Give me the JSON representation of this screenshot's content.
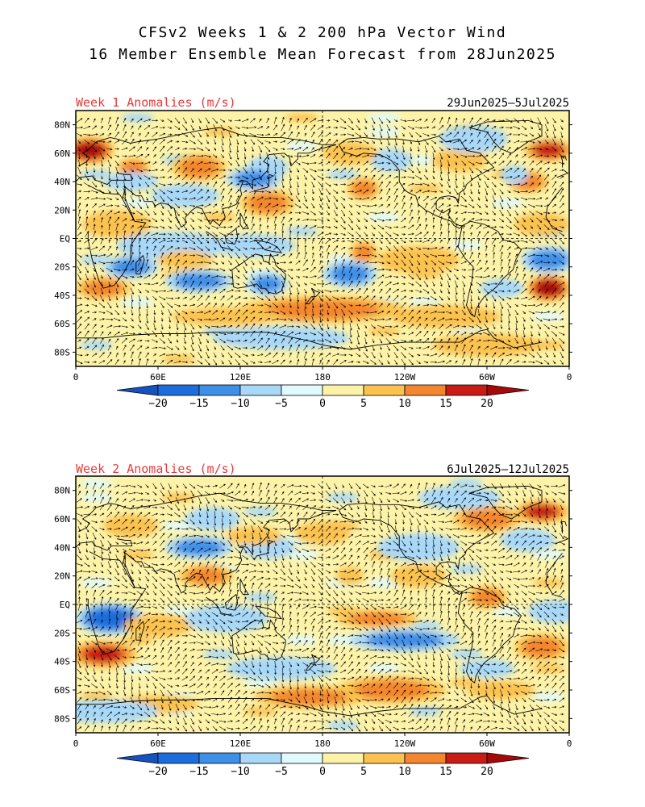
{
  "title": {
    "line1": "CFSv2 Weeks 1 & 2 200 hPa Vector Wind",
    "line2": "16 Member Ensemble Mean Forecast from 28Jun2025"
  },
  "panels": [
    {
      "label": "Week 1 Anomalies (m/s)",
      "date_range": "29Jun2025–5Jul2025",
      "anomaly_blobs": [
        {
          "lon": 10,
          "lat": 62,
          "rx": 18,
          "ry": 6,
          "v": 20
        },
        {
          "lon": 42,
          "lat": 50,
          "rx": 12,
          "ry": 4,
          "v": 11
        },
        {
          "lon": 90,
          "lat": 50,
          "rx": 20,
          "ry": 6,
          "v": 12
        },
        {
          "lon": 140,
          "lat": 50,
          "rx": 15,
          "ry": 5,
          "v": -8
        },
        {
          "lon": 130,
          "lat": 42,
          "rx": 20,
          "ry": 5,
          "v": -12
        },
        {
          "lon": 140,
          "lat": 25,
          "rx": 20,
          "ry": 6,
          "v": 10
        },
        {
          "lon": 80,
          "lat": 30,
          "rx": 25,
          "ry": 5,
          "v": -6
        },
        {
          "lon": 40,
          "lat": 40,
          "rx": 20,
          "ry": 4,
          "v": -7
        },
        {
          "lon": 210,
          "lat": 35,
          "rx": 12,
          "ry": 5,
          "v": 12
        },
        {
          "lon": 230,
          "lat": 55,
          "rx": 15,
          "ry": 5,
          "v": -5
        },
        {
          "lon": 200,
          "lat": 60,
          "rx": 20,
          "ry": 5,
          "v": 8
        },
        {
          "lon": 280,
          "lat": 55,
          "rx": 20,
          "ry": 5,
          "v": 8
        },
        {
          "lon": 290,
          "lat": 70,
          "rx": 25,
          "ry": 6,
          "v": -9
        },
        {
          "lon": 345,
          "lat": 62,
          "rx": 18,
          "ry": 5,
          "v": 15
        },
        {
          "lon": 330,
          "lat": 40,
          "rx": 15,
          "ry": 5,
          "v": 11
        },
        {
          "lon": 320,
          "lat": 45,
          "rx": 10,
          "ry": 4,
          "v": -6
        },
        {
          "lon": 340,
          "lat": 10,
          "rx": 20,
          "ry": 5,
          "v": 8
        },
        {
          "lon": 30,
          "lat": 10,
          "rx": 25,
          "ry": 6,
          "v": 6
        },
        {
          "lon": 70,
          "lat": -5,
          "rx": 40,
          "ry": 6,
          "v": -8
        },
        {
          "lon": 130,
          "lat": -5,
          "rx": 30,
          "ry": 5,
          "v": -6
        },
        {
          "lon": 210,
          "lat": -10,
          "rx": 10,
          "ry": 5,
          "v": 12
        },
        {
          "lon": 200,
          "lat": -25,
          "rx": 20,
          "ry": 6,
          "v": -11
        },
        {
          "lon": 250,
          "lat": -15,
          "rx": 30,
          "ry": 6,
          "v": 6
        },
        {
          "lon": 345,
          "lat": -15,
          "rx": 20,
          "ry": 6,
          "v": -13
        },
        {
          "lon": 345,
          "lat": -35,
          "rx": 16,
          "ry": 6,
          "v": 20
        },
        {
          "lon": 310,
          "lat": -35,
          "rx": 15,
          "ry": 4,
          "v": -6
        },
        {
          "lon": 40,
          "lat": -20,
          "rx": 20,
          "ry": 5,
          "v": -11
        },
        {
          "lon": 20,
          "lat": -35,
          "rx": 20,
          "ry": 5,
          "v": 13
        },
        {
          "lon": 90,
          "lat": -30,
          "rx": 25,
          "ry": 5,
          "v": -12
        },
        {
          "lon": 140,
          "lat": -32,
          "rx": 15,
          "ry": 5,
          "v": -10
        },
        {
          "lon": 80,
          "lat": -15,
          "rx": 20,
          "ry": 4,
          "v": 8
        },
        {
          "lon": 180,
          "lat": -50,
          "rx": 60,
          "ry": 6,
          "v": 14
        },
        {
          "lon": 110,
          "lat": -55,
          "rx": 40,
          "ry": 4,
          "v": 9
        },
        {
          "lon": 270,
          "lat": -55,
          "rx": 40,
          "ry": 5,
          "v": 8
        },
        {
          "lon": 150,
          "lat": -70,
          "rx": 50,
          "ry": 5,
          "v": -6
        },
        {
          "lon": 300,
          "lat": -75,
          "rx": 40,
          "ry": 5,
          "v": 6
        }
      ]
    },
    {
      "label": "Week 2 Anomalies (m/s)",
      "date_range": "6Jul2025–12Jul2025",
      "anomaly_blobs": [
        {
          "lon": 40,
          "lat": 55,
          "rx": 20,
          "ry": 5,
          "v": 8
        },
        {
          "lon": 100,
          "lat": 60,
          "rx": 20,
          "ry": 5,
          "v": -8
        },
        {
          "lon": 90,
          "lat": 40,
          "rx": 25,
          "ry": 5,
          "v": -10
        },
        {
          "lon": 140,
          "lat": 40,
          "rx": 20,
          "ry": 5,
          "v": -9
        },
        {
          "lon": 95,
          "lat": 20,
          "rx": 20,
          "ry": 5,
          "v": 12
        },
        {
          "lon": 130,
          "lat": 48,
          "rx": 20,
          "ry": 4,
          "v": 8
        },
        {
          "lon": 180,
          "lat": 50,
          "rx": 20,
          "ry": 5,
          "v": 7
        },
        {
          "lon": 250,
          "lat": 40,
          "rx": 30,
          "ry": 6,
          "v": -9
        },
        {
          "lon": 300,
          "lat": 60,
          "rx": 25,
          "ry": 6,
          "v": 13
        },
        {
          "lon": 340,
          "lat": 65,
          "rx": 20,
          "ry": 5,
          "v": 15
        },
        {
          "lon": 330,
          "lat": 45,
          "rx": 20,
          "ry": 5,
          "v": -7
        },
        {
          "lon": 280,
          "lat": 75,
          "rx": 30,
          "ry": 5,
          "v": -9
        },
        {
          "lon": 300,
          "lat": 5,
          "rx": 15,
          "ry": 5,
          "v": 14
        },
        {
          "lon": 250,
          "lat": 20,
          "rx": 20,
          "ry": 5,
          "v": 8
        },
        {
          "lon": 200,
          "lat": 20,
          "rx": 10,
          "ry": 4,
          "v": 9
        },
        {
          "lon": 25,
          "lat": -10,
          "rx": 25,
          "ry": 7,
          "v": -15
        },
        {
          "lon": 20,
          "lat": -35,
          "rx": 25,
          "ry": 6,
          "v": 18
        },
        {
          "lon": 60,
          "lat": -15,
          "rx": 25,
          "ry": 5,
          "v": 7
        },
        {
          "lon": 110,
          "lat": -10,
          "rx": 30,
          "ry": 6,
          "v": -8
        },
        {
          "lon": 220,
          "lat": -10,
          "rx": 30,
          "ry": 4,
          "v": 12
        },
        {
          "lon": 240,
          "lat": -25,
          "rx": 40,
          "ry": 5,
          "v": -12
        },
        {
          "lon": 340,
          "lat": -30,
          "rx": 20,
          "ry": 6,
          "v": 13
        },
        {
          "lon": 350,
          "lat": -5,
          "rx": 20,
          "ry": 5,
          "v": -8
        },
        {
          "lon": 230,
          "lat": -60,
          "rx": 40,
          "ry": 6,
          "v": 14
        },
        {
          "lon": 170,
          "lat": -65,
          "rx": 40,
          "ry": 5,
          "v": 10
        },
        {
          "lon": 60,
          "lat": -70,
          "rx": 30,
          "ry": 4,
          "v": 7
        },
        {
          "lon": 310,
          "lat": -60,
          "rx": 25,
          "ry": 4,
          "v": 7
        },
        {
          "lon": 150,
          "lat": -45,
          "rx": 40,
          "ry": 5,
          "v": -7
        },
        {
          "lon": 300,
          "lat": -45,
          "rx": 20,
          "ry": 4,
          "v": -6
        },
        {
          "lon": 20,
          "lat": -75,
          "rx": 40,
          "ry": 5,
          "v": -5
        }
      ]
    }
  ],
  "axes": {
    "lat_labels": [
      "80N",
      "60N",
      "40N",
      "20N",
      "EQ",
      "20S",
      "40S",
      "60S",
      "80S"
    ],
    "lat_values": [
      80,
      60,
      40,
      20,
      0,
      -20,
      -40,
      -60,
      -80
    ],
    "lon_labels": [
      "0",
      "60E",
      "120E",
      "180",
      "120W",
      "60W",
      "0"
    ],
    "lon_values": [
      0,
      60,
      120,
      180,
      240,
      300,
      360
    ],
    "lat_range": [
      -90,
      90
    ],
    "lon_range": [
      0,
      360
    ]
  },
  "colorbar": {
    "labels": [
      "−20",
      "−15",
      "−10",
      "−5",
      "0",
      "5",
      "10",
      "15",
      "20"
    ],
    "levels": [
      -20,
      -15,
      -10,
      -5,
      0,
      5,
      10,
      15,
      20
    ],
    "colors": [
      "#1e6ddc",
      "#3d8fe8",
      "#6aaff0",
      "#a8d8f8",
      "#e0fafe",
      "#fdf3a8",
      "#fbc24f",
      "#f3862e",
      "#e04622",
      "#c01a14"
    ],
    "outer_colors": [
      "#1552c0",
      "#a80808"
    ]
  },
  "map_style": {
    "coast_color": "#000000",
    "vector_color": "#000000",
    "grid_color": "#000000"
  }
}
